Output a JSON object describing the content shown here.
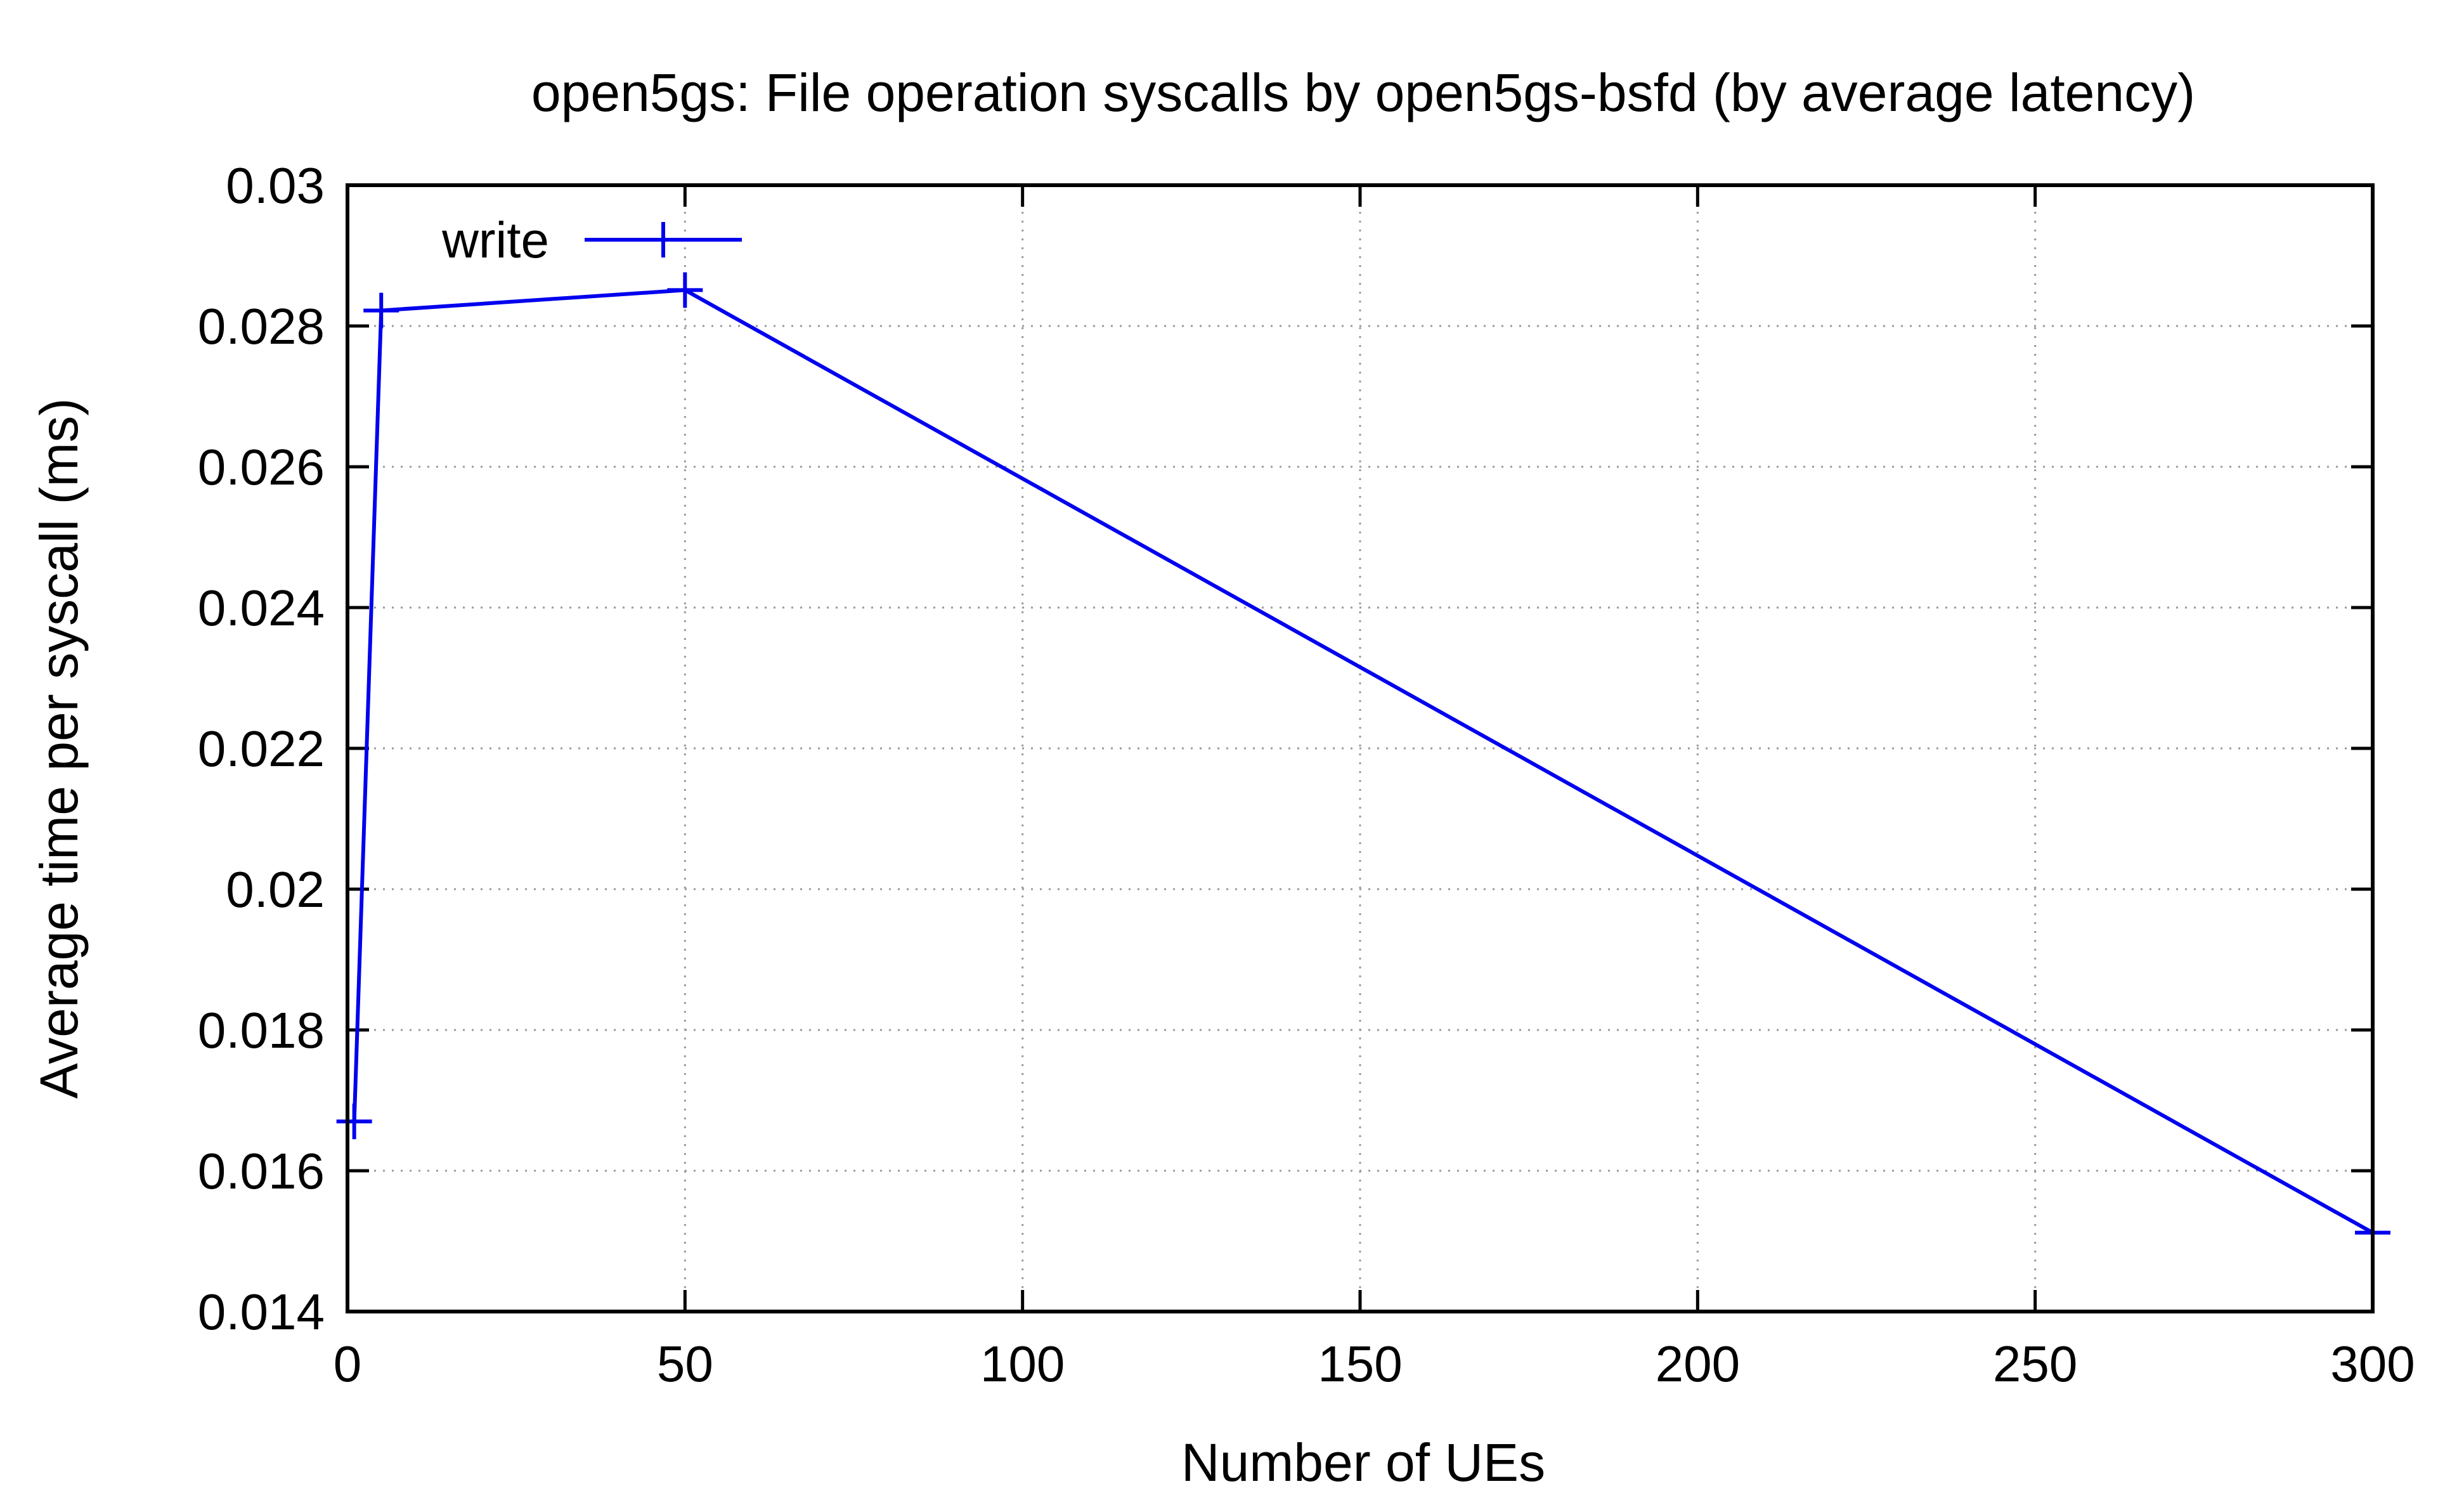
{
  "chart_data": {
    "type": "line",
    "title": "open5gs: File operation syscalls by open5gs-bsfd (by average latency)",
    "xlabel": "Number of UEs",
    "ylabel": "Average time per syscall (ms)",
    "xlim": [
      0,
      300
    ],
    "ylim": [
      0.014,
      0.03
    ],
    "xticks": [
      0,
      50,
      100,
      150,
      200,
      250,
      300
    ],
    "xtick_labels": [
      "0",
      "50",
      "100",
      "150",
      "200",
      "250",
      "300"
    ],
    "yticks": [
      0.014,
      0.016,
      0.018,
      0.02,
      0.022,
      0.024,
      0.026,
      0.028,
      0.03
    ],
    "ytick_labels": [
      "0.014",
      "0.016",
      "0.018",
      "0.02",
      "0.022",
      "0.024",
      "0.026",
      "0.028",
      "0.03"
    ],
    "grid": true,
    "legend_position": "top-left",
    "series": [
      {
        "name": "write",
        "color": "#0000ee",
        "marker": "plus",
        "x": [
          1,
          5,
          50,
          300
        ],
        "y": [
          0.0167,
          0.02822,
          0.02851,
          0.01512
        ]
      }
    ]
  }
}
